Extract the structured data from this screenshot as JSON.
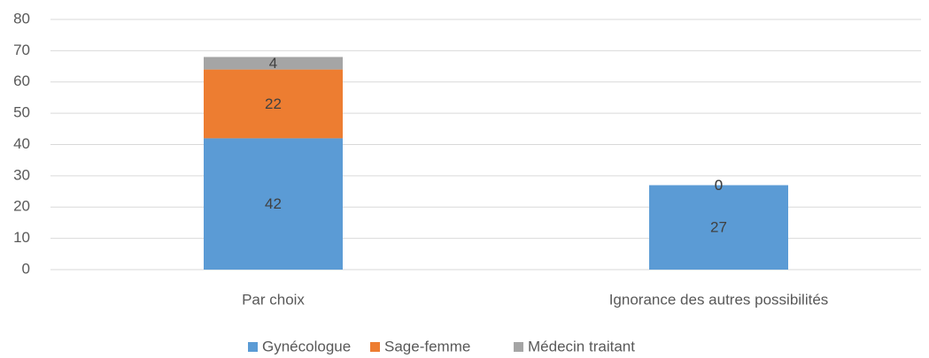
{
  "chart_data": {
    "type": "stacked_bar",
    "categories": [
      "Par choix",
      "Ignorance des autres possibilités"
    ],
    "series": [
      {
        "name": "Gynécologue",
        "color": "#5b9bd5",
        "values": [
          42,
          27
        ]
      },
      {
        "name": "Sage-femme",
        "color": "#ed7d31",
        "values": [
          22,
          0
        ]
      },
      {
        "name": "Médecin traitant",
        "color": "#a5a5a5",
        "values": [
          4,
          0
        ]
      }
    ],
    "ylim": [
      0,
      80
    ],
    "yticks": [
      0,
      10,
      20,
      30,
      40,
      50,
      60,
      70,
      80
    ],
    "grid": true,
    "legend": "bottom"
  }
}
